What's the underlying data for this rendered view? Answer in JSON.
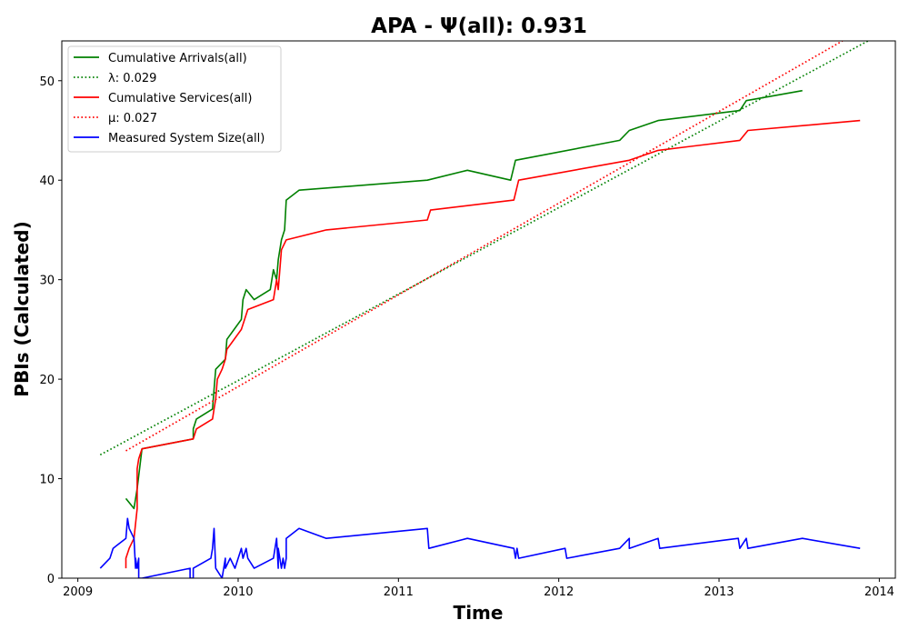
{
  "chart_data": {
    "type": "line",
    "title": "APA -  Ψ(all): 0.931",
    "xlabel": "Time",
    "ylabel": "PBIs (Calculated)",
    "xlim": [
      2008.9,
      2014.1
    ],
    "ylim": [
      0,
      54
    ],
    "x_ticks": [
      2009,
      2010,
      2011,
      2012,
      2013,
      2014
    ],
    "x_tick_labels": [
      "2009",
      "2010",
      "2011",
      "2012",
      "2013",
      "2014"
    ],
    "y_ticks": [
      0,
      10,
      20,
      30,
      40,
      50
    ],
    "y_tick_labels": [
      "0",
      "10",
      "20",
      "30",
      "40",
      "50"
    ],
    "grid": false,
    "legend_position": "top-left",
    "series": [
      {
        "name": "Cumulative Arrivals(all)",
        "color": "#008000",
        "style": "solid",
        "x": [
          2009.3,
          2009.35,
          2009.37,
          2009.4,
          2009.72,
          2009.72,
          2009.74,
          2009.84,
          2009.85,
          2009.86,
          2009.92,
          2009.93,
          2010.02,
          2010.03,
          2010.05,
          2010.1,
          2010.2,
          2010.22,
          2010.24,
          2010.25,
          2010.27,
          2010.29,
          2010.3,
          2010.38,
          2011.18,
          2011.43,
          2011.7,
          2011.73,
          2012.38,
          2012.44,
          2012.62,
          2013.13,
          2013.17,
          2013.52
        ],
        "values": [
          8,
          7,
          9,
          13,
          14,
          15,
          16,
          17,
          19,
          21,
          22,
          24,
          26,
          28,
          29,
          28,
          29,
          31,
          30,
          32,
          34,
          35,
          38,
          39,
          40,
          41,
          40,
          42,
          44,
          45,
          46,
          47,
          48,
          49
        ]
      },
      {
        "name": "λ: 0.029",
        "color": "#008000",
        "style": "dotted",
        "x": [
          2009.14,
          2013.93
        ],
        "values": [
          12.4,
          54.0
        ]
      },
      {
        "name": "Cumulative Services(all)",
        "color": "#ff0000",
        "style": "solid",
        "x": [
          2009.3,
          2009.3,
          2009.32,
          2009.35,
          2009.37,
          2009.37,
          2009.38,
          2009.4,
          2009.72,
          2009.74,
          2009.84,
          2009.85,
          2009.86,
          2009.87,
          2009.9,
          2009.92,
          2009.93,
          2010.02,
          2010.06,
          2010.22,
          2010.24,
          2010.25,
          2010.27,
          2010.3,
          2010.55,
          2011.18,
          2011.2,
          2011.72,
          2011.75,
          2012.44,
          2012.62,
          2013.13,
          2013.18,
          2013.88
        ],
        "values": [
          1,
          2,
          3,
          4,
          7,
          11,
          12,
          13,
          14,
          15,
          16,
          17,
          18,
          20,
          21,
          22,
          23,
          25,
          27,
          28,
          30,
          29,
          33,
          34,
          35,
          36,
          37,
          38,
          40,
          42,
          43,
          44,
          45,
          46
        ]
      },
      {
        "name": "μ: 0.027",
        "color": "#ff0000",
        "style": "dotted",
        "x": [
          2009.3,
          2013.77
        ],
        "values": [
          12.8,
          54.0
        ]
      },
      {
        "name": "Measured System Size(all)",
        "color": "#0000ff",
        "style": "solid",
        "x": [
          2009.14,
          2009.2,
          2009.22,
          2009.3,
          2009.31,
          2009.32,
          2009.35,
          2009.36,
          2009.36,
          2009.37,
          2009.38,
          2009.38,
          2009.4,
          2009.7,
          2009.7,
          2009.72,
          2009.72,
          2009.83,
          2009.84,
          2009.85,
          2009.86,
          2009.9,
          2009.92,
          2009.92,
          2009.95,
          2009.98,
          2010.02,
          2010.03,
          2010.05,
          2010.06,
          2010.1,
          2010.22,
          2010.24,
          2010.25,
          2010.25,
          2010.27,
          2010.28,
          2010.29,
          2010.3,
          2010.3,
          2010.38,
          2010.55,
          2011.18,
          2011.19,
          2011.43,
          2011.72,
          2011.73,
          2011.74,
          2011.75,
          2012.04,
          2012.05,
          2012.38,
          2012.44,
          2012.44,
          2012.62,
          2012.63,
          2013.12,
          2013.13,
          2013.17,
          2013.18,
          2013.52,
          2013.88
        ],
        "values": [
          1,
          2,
          3,
          4,
          6,
          5,
          4,
          1,
          2,
          1,
          2,
          0,
          0,
          1,
          0,
          0,
          1,
          2,
          3,
          5,
          1,
          0,
          2,
          1,
          2,
          1,
          3,
          2,
          3,
          2,
          1,
          2,
          4,
          1,
          3,
          1,
          2,
          1,
          2,
          4,
          5,
          4,
          5,
          3,
          4,
          3,
          2,
          3,
          2,
          3,
          2,
          3,
          4,
          3,
          4,
          3,
          4,
          3,
          4,
          3,
          4,
          3
        ]
      }
    ]
  }
}
